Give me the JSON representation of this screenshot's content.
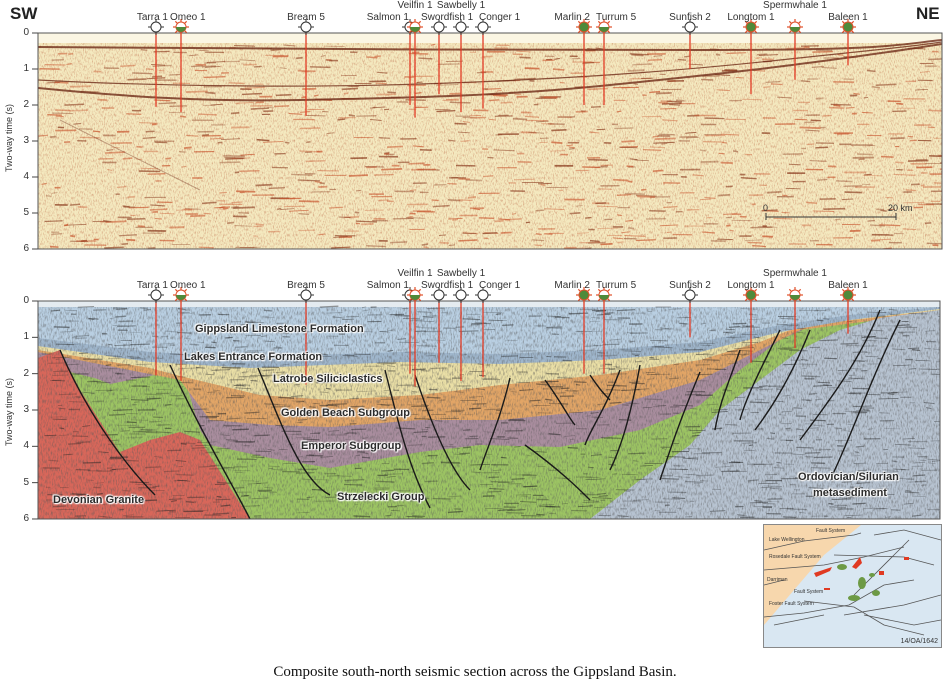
{
  "directions": {
    "left": "SW",
    "right": "NE"
  },
  "y_axis": {
    "label": "Two-way time (s)",
    "ticks": [
      "0",
      "1",
      "2",
      "3",
      "4",
      "5",
      "6"
    ]
  },
  "scale_bar": {
    "start": "0",
    "end": "20 km"
  },
  "well_symbols": {
    "open-circle": "dry hole symbol",
    "half-filled-sun": "half-filled green symbol with red rays",
    "filled-sun": "filled green symbol with red rays"
  },
  "wells": [
    {
      "name": "Tarra 1",
      "symbol": "open-circle",
      "td_twt_s": 2.05
    },
    {
      "name": "Omeo 1",
      "symbol": "half-filled-sun",
      "td_twt_s": 2.2
    },
    {
      "name": "Bream 5",
      "symbol": "open-circle",
      "td_twt_s": 2.3
    },
    {
      "name": "Salmon 1",
      "symbol": "open-circle",
      "td_twt_s": 2.0
    },
    {
      "name": "Veilfin 1",
      "symbol": "half-filled-sun",
      "td_twt_s": 2.35
    },
    {
      "name": "Swordfish 1",
      "symbol": "open-circle",
      "td_twt_s": 1.7
    },
    {
      "name": "Sawbelly 1",
      "symbol": "open-circle",
      "td_twt_s": 2.2
    },
    {
      "name": "Conger 1",
      "symbol": "open-circle",
      "td_twt_s": 2.1
    },
    {
      "name": "Marlin 2",
      "symbol": "filled-sun",
      "td_twt_s": 2.0
    },
    {
      "name": "Turrum 5",
      "symbol": "half-filled-sun",
      "td_twt_s": 2.0
    },
    {
      "name": "Sunfish 2",
      "symbol": "open-circle",
      "td_twt_s": 1.0
    },
    {
      "name": "Longtom 1",
      "symbol": "filled-sun",
      "td_twt_s": 1.7
    },
    {
      "name": "Spermwhale 1",
      "symbol": "half-filled-sun",
      "td_twt_s": 1.3
    },
    {
      "name": "Baleen 1",
      "symbol": "filled-sun",
      "td_twt_s": 0.9
    }
  ],
  "formations": {
    "gippsland": "Gippsland Limestone Formation",
    "lakes": "Lakes Entrance Formation",
    "latrobe": "Latrobe Siliciclastics",
    "golden_beach": "Golden Beach Subgroup",
    "emperor": "Emperor Subgroup",
    "strzelecki": "Strzelecki Group",
    "granite": "Devonian Granite",
    "ordovician_1": "Ordovician/Silurian",
    "ordovician_2": "metasediment"
  },
  "formation_colors": {
    "gippsland": "#b9cfe2",
    "lakes": "#9fb6cc",
    "latrobe": "#eadfa6",
    "golden_beach": "#e2a566",
    "emperor": "#a98d9e",
    "strzelecki": "#9cc463",
    "granite": "#d8675a",
    "ordovician": "#b7c3d1"
  },
  "inset_map": {
    "labels": [
      "Lake Wellington",
      "Fault System",
      "Rosedale Fault System",
      "Darriman",
      "Fault System",
      "Foster Fault System"
    ],
    "code": "14/OA/1642"
  },
  "caption": "Composite south-north seismic section across the Gippsland Basin."
}
